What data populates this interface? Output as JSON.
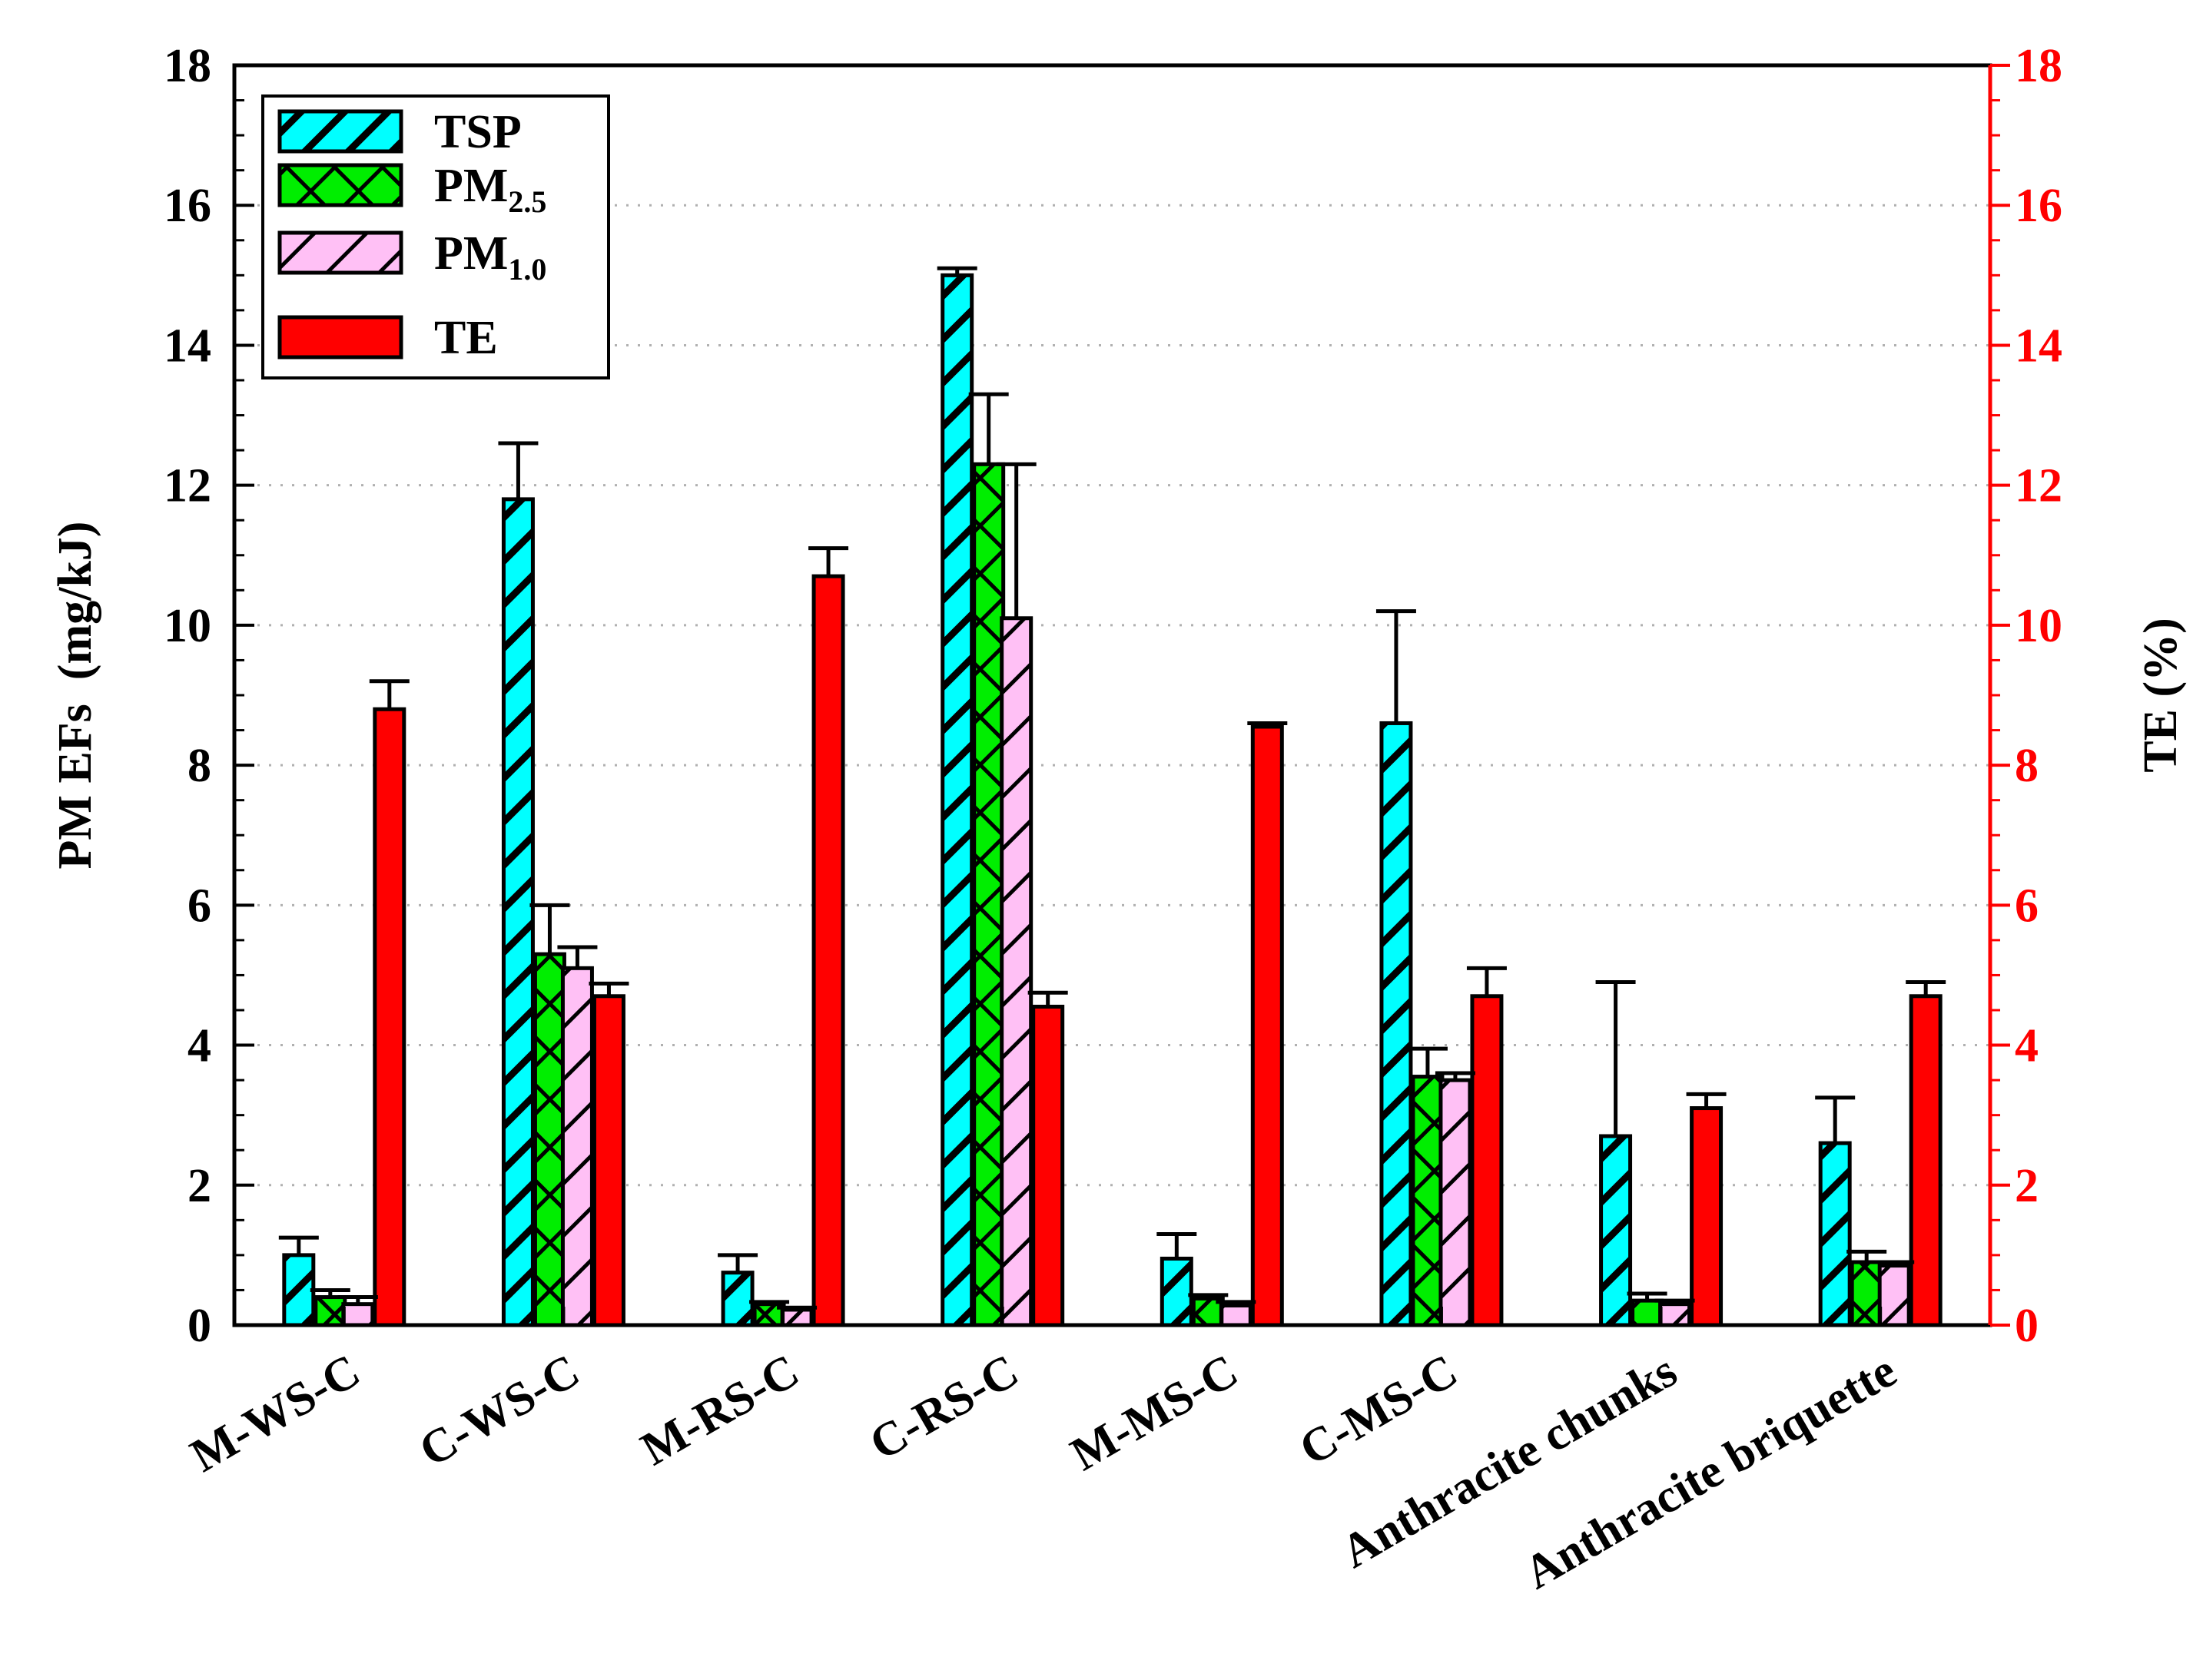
{
  "chart_data": {
    "type": "bar",
    "ylabel_left": "PM EFs  (mg/kJ)",
    "ylabel_right": "TE (%)",
    "ylim_left": [
      0,
      18
    ],
    "ylim_right": [
      0,
      18
    ],
    "yticks": [
      "0",
      "2",
      "4",
      "6",
      "8",
      "10",
      "12",
      "14",
      "16",
      "18"
    ],
    "grid": true,
    "legend_position": "top-left",
    "categories": [
      "M-WS-C",
      "C-WS-C",
      "M-RS-C",
      "C-RS-C",
      "M-MS-C",
      "C-MS-C",
      "Anthracite chunks",
      "Anthracite briquette"
    ],
    "series": [
      {
        "name": "TSP",
        "legend_main": "TSP",
        "legend_sub": "",
        "axis": "left",
        "values": [
          1.0,
          11.8,
          0.75,
          15.0,
          0.95,
          8.6,
          2.7,
          2.6
        ],
        "errors": [
          0.25,
          0.8,
          0.25,
          0.1,
          0.35,
          1.6,
          2.2,
          0.65
        ]
      },
      {
        "name": "PM2.5",
        "legend_main": "PM",
        "legend_sub": "2.5",
        "axis": "left",
        "values": [
          0.4,
          5.3,
          0.3,
          12.3,
          0.38,
          3.55,
          0.35,
          0.9
        ],
        "errors": [
          0.1,
          0.7,
          0.03,
          1.0,
          0.05,
          0.4,
          0.1,
          0.15
        ]
      },
      {
        "name": "PM1.0",
        "legend_main": "PM",
        "legend_sub": "1.0",
        "axis": "left",
        "values": [
          0.3,
          5.1,
          0.22,
          10.1,
          0.28,
          3.5,
          0.3,
          0.85
        ],
        "errors": [
          0.1,
          0.3,
          0.03,
          2.2,
          0.05,
          0.1,
          0.05,
          0.05
        ]
      },
      {
        "name": "TE",
        "legend_main": "TE",
        "legend_sub": "",
        "axis": "right",
        "values": [
          8.8,
          4.7,
          10.7,
          4.55,
          8.55,
          4.7,
          3.1,
          4.7
        ],
        "errors": [
          0.4,
          0.18,
          0.4,
          0.2,
          0.05,
          0.4,
          0.2,
          0.2
        ]
      }
    ]
  },
  "colors": {
    "tsp": "#00ffff",
    "pm25": "#00ee00",
    "pm10": "#ffc0f5",
    "te": "#ff0000",
    "right_axis": "#ff0000",
    "grid": "#b0b0b0"
  }
}
